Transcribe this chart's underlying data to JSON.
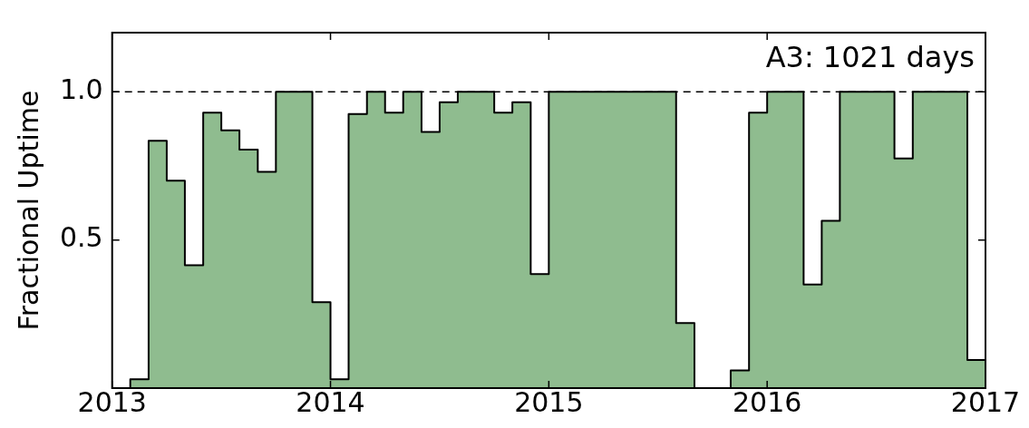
{
  "chart_data": {
    "type": "histogram",
    "bins": [
      2013,
      2013.083,
      2013.167,
      2013.25,
      2013.333,
      2013.417,
      2013.5,
      2013.583,
      2013.667,
      2013.75,
      2013.833,
      2013.917,
      2014,
      2014.083,
      2014.167,
      2014.25,
      2014.333,
      2014.417,
      2014.5,
      2014.583,
      2014.667,
      2014.75,
      2014.833,
      2014.917,
      2015,
      2015.083,
      2015.167,
      2015.25,
      2015.333,
      2015.417,
      2015.5,
      2015.583,
      2015.667,
      2015.75,
      2015.833,
      2015.917,
      2016,
      2016.083,
      2016.167,
      2016.25,
      2016.333,
      2016.417,
      2016.5,
      2016.583,
      2016.667,
      2016.75,
      2016.833,
      2016.917,
      2017
    ],
    "values": [
      0,
      0.03,
      0.835,
      0.7,
      0.415,
      0.93,
      0.87,
      0.805,
      0.73,
      1,
      1,
      0.29,
      0.03,
      0.925,
      1,
      0.93,
      1,
      0.865,
      0.965,
      1,
      1,
      0.93,
      0.965,
      0.385,
      1,
      1,
      1,
      1,
      1,
      1,
      1,
      0.22,
      0,
      0,
      0.06,
      0.93,
      1,
      1,
      0.35,
      0.565,
      1,
      1,
      1,
      0.775,
      1,
      1,
      1,
      0.095
    ],
    "color": "#8fbc8f",
    "ylabel": "Fractional Uptime",
    "annotations": [
      "A3: 1021 days"
    ],
    "xlim": [
      2013,
      2017
    ],
    "xticks": [
      2013,
      2014,
      2015,
      2016,
      2017
    ],
    "ylim": [
      0,
      1.2
    ],
    "yticks": [
      {
        "value": 0.5,
        "label": "0.5"
      },
      {
        "value": 1,
        "label": "1.0"
      }
    ],
    "ref_lines": [
      {
        "axis": "y",
        "value": 1,
        "color": "#000000",
        "line_style": "dashed"
      }
    ],
    "grid": false,
    "legend": false
  }
}
